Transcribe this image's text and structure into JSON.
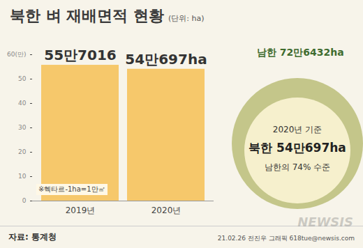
{
  "chart_data": {
    "type": "bar",
    "title": "북한 벼 재배면적 현황",
    "subtitle": "(단위: ha)",
    "categories": [
      "2019년",
      "2020년"
    ],
    "values": [
      55.7016,
      54.0697
    ],
    "value_labels": [
      "55만7016",
      "54만697ha"
    ],
    "data_labels": true,
    "color": "#f6c86b",
    "ylim": [
      0,
      60
    ],
    "yticks": [
      0,
      10,
      20,
      30,
      40,
      50,
      {
        "value": 60,
        "label": "60(만)"
      }
    ],
    "grid": false,
    "annotations": {
      "note": "※헥타르-1ha=1만㎡",
      "circle_top": "남한 72만6432ha",
      "circle_line1": "2020년 기준",
      "circle_line2": "북한 54만697ha",
      "circle_line3": "남한의 74% 수준"
    },
    "source": "자료: 통계청",
    "credit": "21.02.26 전진우 그래픽 618tue@newsis.com",
    "watermark": "NEWSIS"
  }
}
